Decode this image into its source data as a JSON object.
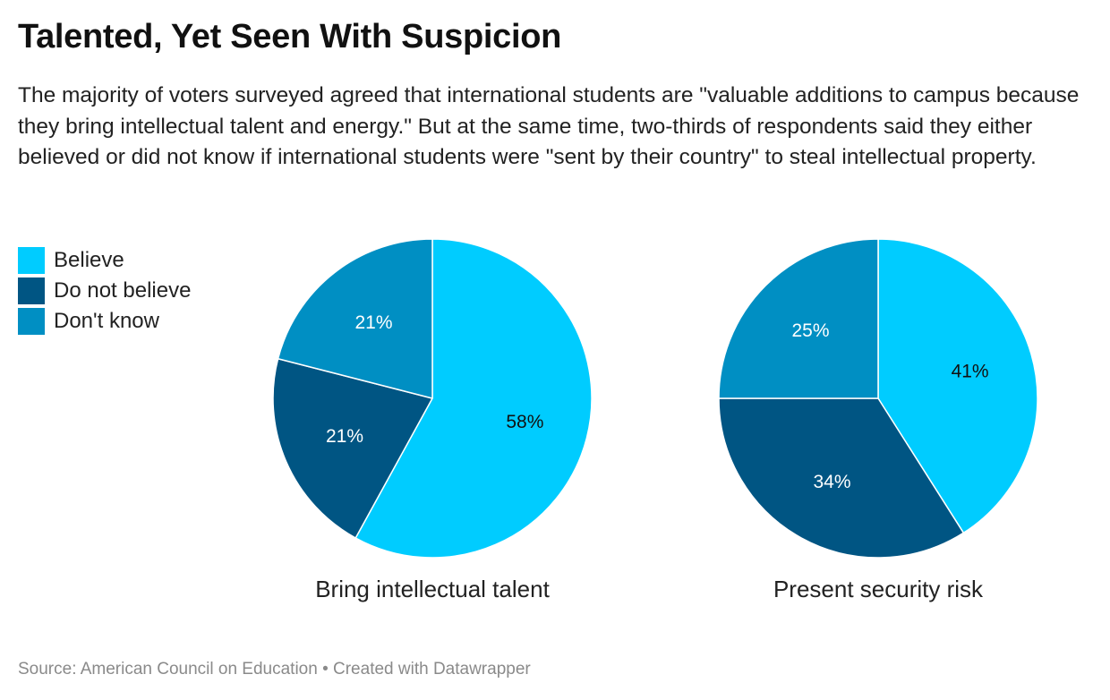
{
  "header": {
    "title": "Talented, Yet Seen With Suspicion",
    "subtitle": "The majority of voters surveyed agreed that international students are \"valuable additions to campus because they bring intellectual talent and energy.\" But at the same time, two-thirds of respondents said they either believed or did not know if international students were \"sent by their country\" to steal intellectual property."
  },
  "legend": [
    {
      "label": "Believe",
      "color": "#00ccff"
    },
    {
      "label": "Do not believe",
      "color": "#005583"
    },
    {
      "label": "Don't know",
      "color": "#008fc3"
    }
  ],
  "footer": {
    "source": "Source: American Council on Education • Created with Datawrapper"
  },
  "chart_data": [
    {
      "type": "pie",
      "title": "Bring intellectual talent",
      "categories": [
        "Believe",
        "Do not believe",
        "Don't know"
      ],
      "values": [
        58,
        21,
        21
      ],
      "labels": [
        "58%",
        "21%",
        "21%"
      ],
      "colors": [
        "#00ccff",
        "#005583",
        "#008fc3"
      ],
      "label_colors": [
        "#111111",
        "#ffffff",
        "#ffffff"
      ]
    },
    {
      "type": "pie",
      "title": "Present security risk",
      "categories": [
        "Believe",
        "Do not believe",
        "Don't know"
      ],
      "values": [
        41,
        34,
        25
      ],
      "labels": [
        "41%",
        "34%",
        "25%"
      ],
      "colors": [
        "#00ccff",
        "#005583",
        "#008fc3"
      ],
      "label_colors": [
        "#111111",
        "#ffffff",
        "#ffffff"
      ]
    }
  ]
}
